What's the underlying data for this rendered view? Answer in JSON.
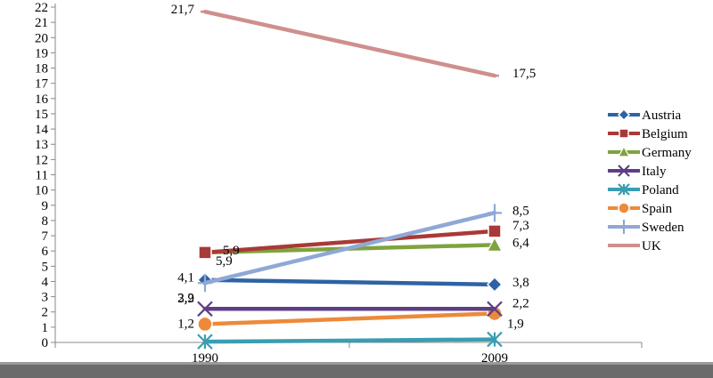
{
  "chart_data": {
    "type": "line",
    "title": "",
    "xlabel": "",
    "ylabel": "",
    "categories": [
      "1990",
      "2009"
    ],
    "ylim": [
      0,
      22
    ],
    "yticks": [
      0,
      1,
      2,
      3,
      4,
      5,
      6,
      7,
      8,
      9,
      10,
      11,
      12,
      13,
      14,
      15,
      16,
      17,
      18,
      19,
      20,
      21,
      22
    ],
    "grid": false,
    "legend_position": "right",
    "series": [
      {
        "name": "Austria",
        "values": [
          4.1,
          3.8
        ],
        "labels": [
          "4,1",
          "3,8"
        ],
        "color": "#2e63a3",
        "marker": "diamond"
      },
      {
        "name": "Belgium",
        "values": [
          5.9,
          7.3
        ],
        "labels": [
          "5,9",
          "7,3"
        ],
        "color": "#a83a37",
        "marker": "square"
      },
      {
        "name": "Germany",
        "values": [
          5.9,
          6.4
        ],
        "labels": [
          "5,9",
          "6,4"
        ],
        "color": "#7fa33f",
        "marker": "triangle"
      },
      {
        "name": "Italy",
        "values": [
          2.2,
          2.2
        ],
        "labels": [
          "2,2",
          "2,2"
        ],
        "color": "#5e3f86",
        "marker": "x"
      },
      {
        "name": "Poland",
        "values": [
          0.05,
          0.2
        ],
        "labels": [
          "",
          ""
        ],
        "color": "#3a9db2",
        "marker": "asterisk"
      },
      {
        "name": "Spain",
        "values": [
          1.2,
          1.9
        ],
        "labels": [
          "1,2",
          "1,9"
        ],
        "color": "#ec8a3a",
        "marker": "circle"
      },
      {
        "name": "Sweden",
        "values": [
          3.9,
          8.5
        ],
        "labels": [
          "3,9",
          "8,5"
        ],
        "color": "#8fa8d6",
        "marker": "plus"
      },
      {
        "name": "UK",
        "values": [
          21.7,
          17.5
        ],
        "labels": [
          "21,7",
          "17,5"
        ],
        "color": "#cf8f8d",
        "marker": "dash"
      }
    ]
  }
}
